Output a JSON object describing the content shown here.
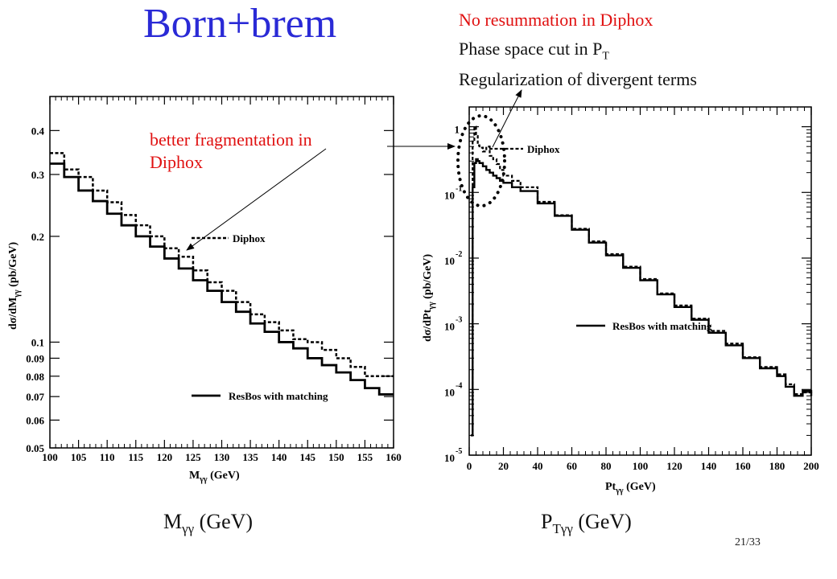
{
  "slide": {
    "title": "Born+brem",
    "notes": {
      "line1": "No resummation in Diphox",
      "line2_main": "Phase space cut in P",
      "line2_sub": "T",
      "line3": "Regularization of divergent terms"
    },
    "fragmentation_note": {
      "line1": "better fragmentation in",
      "line2": "Diphox"
    },
    "bottom_labels": {
      "left_main": "M",
      "left_sub": "γγ",
      "left_unit": " (GeV)",
      "right_main": "P",
      "right_sub": "Tγγ",
      "right_unit": " (GeV)"
    },
    "page_number": "21/33"
  },
  "chart_data": [
    {
      "type": "line",
      "step": true,
      "xlabel_main": "M",
      "xlabel_sub": "γγ",
      "xlabel_unit": " (GeV)",
      "ylabel_main": "dσ/dM",
      "ylabel_sub": "γγ",
      "ylabel_unit": " (pb/GeV)",
      "xlim": [
        100,
        160
      ],
      "ylim": [
        0.05,
        0.5
      ],
      "yscale": "log",
      "x_ticks": [
        "100",
        "105",
        "110",
        "115",
        "120",
        "125",
        "130",
        "135",
        "140",
        "145",
        "150",
        "155",
        "160"
      ],
      "y_ticks": [
        {
          "value": 0.05,
          "label": "0.05"
        },
        {
          "value": 0.06,
          "label": "0.06"
        },
        {
          "value": 0.07,
          "label": "0.07"
        },
        {
          "value": 0.08,
          "label": "0.08"
        },
        {
          "value": 0.09,
          "label": "0.09"
        },
        {
          "value": 0.1,
          "label": "0.1"
        },
        {
          "value": 0.2,
          "label": "0.2"
        },
        {
          "value": 0.3,
          "label": "0.3"
        },
        {
          "value": 0.4,
          "label": "0.4"
        }
      ],
      "bin_edges": [
        100,
        102.5,
        105,
        107.5,
        110,
        112.5,
        115,
        117.5,
        120,
        122.5,
        125,
        127.5,
        130,
        132.5,
        135,
        137.5,
        140,
        142.5,
        145,
        147.5,
        150,
        152.5,
        155,
        157.5,
        160
      ],
      "series": [
        {
          "name": "Diphox",
          "style": "dashed",
          "values": [
            0.345,
            0.31,
            0.295,
            0.27,
            0.25,
            0.23,
            0.215,
            0.2,
            0.185,
            0.175,
            0.16,
            0.148,
            0.14,
            0.13,
            0.12,
            0.114,
            0.108,
            0.102,
            0.1,
            0.095,
            0.09,
            0.085,
            0.08,
            0.08
          ]
        },
        {
          "name": "ResBos with matching",
          "style": "solid",
          "values": [
            0.322,
            0.295,
            0.27,
            0.252,
            0.232,
            0.215,
            0.2,
            0.187,
            0.173,
            0.162,
            0.15,
            0.14,
            0.13,
            0.122,
            0.113,
            0.107,
            0.1,
            0.096,
            0.09,
            0.086,
            0.082,
            0.078,
            0.074,
            0.071
          ]
        }
      ],
      "legend": [
        {
          "name": "Diphox",
          "style": "dashed"
        },
        {
          "name": "ResBos with matching",
          "style": "solid"
        }
      ]
    },
    {
      "type": "line",
      "step": true,
      "xlabel_main": "Pt",
      "xlabel_sub": "γγ",
      "xlabel_unit": " (GeV)",
      "ylabel_main": "dσ/dPt",
      "ylabel_sub": "γγ",
      "ylabel_unit": " (pb/GeV)",
      "xlim": [
        0,
        200
      ],
      "ylim": [
        1e-05,
        2
      ],
      "yscale": "log",
      "x_ticks": [
        "0",
        "20",
        "40",
        "60",
        "80",
        "100",
        "120",
        "140",
        "160",
        "180",
        "200"
      ],
      "y_ticks": [
        {
          "value": 1,
          "base": "1",
          "exp": ""
        },
        {
          "value": 0.1,
          "base": "10",
          "exp": "-1"
        },
        {
          "value": 0.01,
          "base": "10",
          "exp": "-2"
        },
        {
          "value": 0.001,
          "base": "10",
          "exp": "-3"
        },
        {
          "value": 0.0001,
          "base": "10",
          "exp": "-4"
        },
        {
          "value": 1e-05,
          "base": "10",
          "exp": "-5"
        }
      ],
      "series": [
        {
          "name": "Diphox",
          "style": "dashed",
          "x": [
            1,
            2,
            3,
            4,
            5,
            6,
            8,
            10,
            12,
            14,
            16,
            18,
            20,
            25,
            30,
            40,
            50,
            60,
            70,
            80,
            90,
            100,
            110,
            120,
            130,
            140,
            150,
            160,
            170,
            180,
            185,
            190,
            195,
            200
          ],
          "y": [
            2e-05,
            0.6,
            1.0,
            0.72,
            0.52,
            0.48,
            0.42,
            0.5,
            0.36,
            0.32,
            0.27,
            0.22,
            0.18,
            0.15,
            0.12,
            0.072,
            0.045,
            0.028,
            0.018,
            0.0115,
            0.0074,
            0.0048,
            0.0029,
            0.0019,
            0.0012,
            0.00078,
            0.0005,
            0.00031,
            0.00022,
            0.00017,
            0.00012,
            8.5e-05,
            9e-05,
            8e-05
          ]
        },
        {
          "name": "ResBos with matching",
          "style": "solid",
          "x": [
            1,
            2,
            3,
            4,
            5,
            6,
            8,
            10,
            12,
            14,
            16,
            18,
            20,
            25,
            30,
            40,
            50,
            60,
            70,
            80,
            90,
            100,
            110,
            120,
            130,
            140,
            150,
            160,
            170,
            180,
            185,
            190,
            195,
            200
          ],
          "y": [
            2e-05,
            0.12,
            0.28,
            0.32,
            0.3,
            0.28,
            0.25,
            0.22,
            0.2,
            0.18,
            0.165,
            0.15,
            0.14,
            0.12,
            0.105,
            0.068,
            0.044,
            0.027,
            0.0172,
            0.011,
            0.0071,
            0.0046,
            0.0028,
            0.0018,
            0.00115,
            0.00073,
            0.00047,
            0.0003,
            0.00021,
            0.00016,
            0.00011,
            8e-05,
            9.5e-05,
            8e-05
          ]
        }
      ],
      "legend": [
        {
          "name": "Diphox",
          "style": "dashed"
        },
        {
          "name": "ResBos with matching",
          "style": "solid"
        }
      ]
    }
  ]
}
